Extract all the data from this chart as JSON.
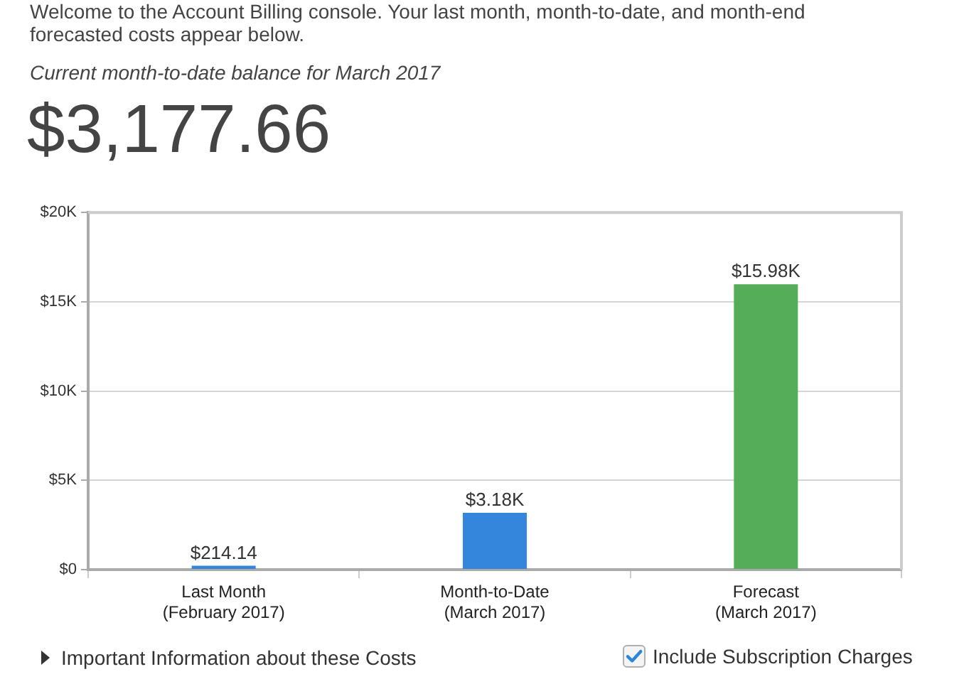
{
  "chart_data": {
    "type": "bar",
    "annotations": [
      "Welcome to the Account Billing console. Your last month, month-to-date, and month-end forecasted costs appear below.",
      "Current month-to-date balance for March 2017",
      "$3,177.66",
      "Important Information about these Costs",
      "Include Subscription Charges"
    ],
    "categories": [
      "Last Month\n(February 2017)",
      "Month-to-Date\n(March 2017)",
      "Forecast\n(March 2017)"
    ],
    "values": [
      214.14,
      3180,
      15980
    ],
    "colors": [
      "#3386dc",
      "#3386dc",
      "#55ad59"
    ],
    "value_labels": [
      "$214.14",
      "$3.18K",
      "$15.98K"
    ],
    "ylim": [
      0,
      20000
    ],
    "yticks": [
      {
        "value": 0,
        "label": "$0"
      },
      {
        "value": 5000,
        "label": "$5K"
      },
      {
        "value": 10000,
        "label": "$10K"
      },
      {
        "value": 15000,
        "label": "$15K"
      },
      {
        "value": 20000,
        "label": "$20K"
      }
    ],
    "grid": "y"
  }
}
